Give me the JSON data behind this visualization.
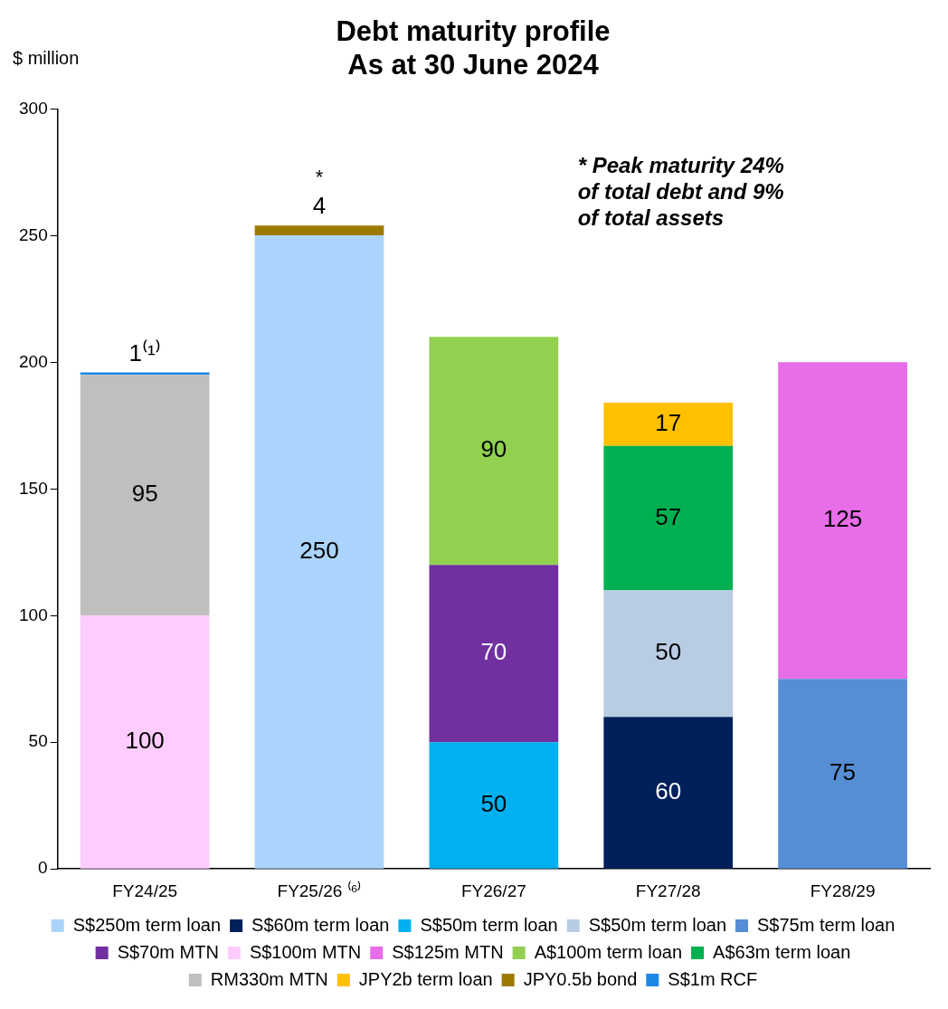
{
  "chart_data": {
    "type": "bar",
    "title": "Debt maturity profile\nAs at 30 June 2024",
    "ylabel": "$ million",
    "categories": [
      "FY24/25",
      "FY25/26 ⁽⁶⁾",
      "FY26/27",
      "FY27/28",
      "FY28/29"
    ],
    "stacked": true,
    "ylim": [
      0,
      300
    ],
    "yticks": [
      0,
      50,
      100,
      150,
      200,
      250,
      300
    ],
    "grid": false,
    "legend": "bottom",
    "annotations": [
      "*",
      "* Peak maturity 24%\nof total debt and 9%\nof total assets"
    ],
    "series": [
      {
        "name": "S$250m term loan",
        "color": "#aad4fb",
        "values": [
          null,
          250,
          null,
          null,
          null
        ],
        "value_labels": [
          null,
          "250",
          null,
          null,
          null
        ]
      },
      {
        "name": "S$60m term loan",
        "color": "#00205b",
        "values": [
          null,
          null,
          null,
          60,
          null
        ],
        "value_labels": [
          null,
          null,
          null,
          "60",
          null
        ]
      },
      {
        "name": "S$50m term loan",
        "color": "#00b0f0",
        "values": [
          null,
          null,
          50,
          null,
          null
        ],
        "value_labels": [
          null,
          null,
          "50",
          null,
          null
        ]
      },
      {
        "name": "S$50m term loan",
        "color": "#b8cce4",
        "values": [
          null,
          null,
          null,
          50,
          null
        ],
        "value_labels": [
          null,
          null,
          null,
          "50",
          null
        ]
      },
      {
        "name": "S$75m term loan",
        "color": "#558ed5",
        "values": [
          null,
          null,
          null,
          null,
          75
        ],
        "value_labels": [
          null,
          null,
          null,
          null,
          "75"
        ]
      },
      {
        "name": "S$70m MTN",
        "color": "#7030a0",
        "values": [
          null,
          null,
          70,
          null,
          null
        ],
        "value_labels": [
          null,
          null,
          "70",
          null,
          null
        ]
      },
      {
        "name": "S$100m MTN",
        "color": "#ffccff",
        "values": [
          100,
          null,
          null,
          null,
          null
        ],
        "value_labels": [
          "100",
          null,
          null,
          null,
          null
        ]
      },
      {
        "name": "S$125m MTN",
        "color": "#e86de8",
        "values": [
          null,
          null,
          null,
          null,
          125
        ],
        "value_labels": [
          null,
          null,
          null,
          null,
          "125"
        ]
      },
      {
        "name": "A$100m term loan",
        "color": "#92d050",
        "values": [
          null,
          null,
          90,
          null,
          null
        ],
        "value_labels": [
          null,
          null,
          "90",
          null,
          null
        ]
      },
      {
        "name": "A$63m term loan",
        "color": "#00b050",
        "values": [
          null,
          null,
          null,
          57,
          null
        ],
        "value_labels": [
          null,
          null,
          null,
          "57",
          null
        ]
      },
      {
        "name": "RM330m MTN",
        "color": "#bfbfbf",
        "values": [
          95,
          null,
          null,
          null,
          null
        ],
        "value_labels": [
          "95",
          null,
          null,
          null,
          null
        ]
      },
      {
        "name": "JPY2b term loan",
        "color": "#ffc000",
        "values": [
          null,
          null,
          null,
          17,
          null
        ],
        "value_labels": [
          null,
          null,
          null,
          "17",
          null
        ]
      },
      {
        "name": "JPY0.5b bond",
        "color": "#9c7a00",
        "values": [
          null,
          4,
          null,
          null,
          null
        ],
        "value_labels": [
          null,
          "4",
          null,
          null,
          null
        ]
      },
      {
        "name": "S$1m RCF",
        "color": "#1e88e5",
        "values": [
          1,
          null,
          null,
          null,
          null
        ],
        "value_labels": [
          "1⁽¹⁾",
          null,
          null,
          null,
          null
        ]
      }
    ]
  }
}
